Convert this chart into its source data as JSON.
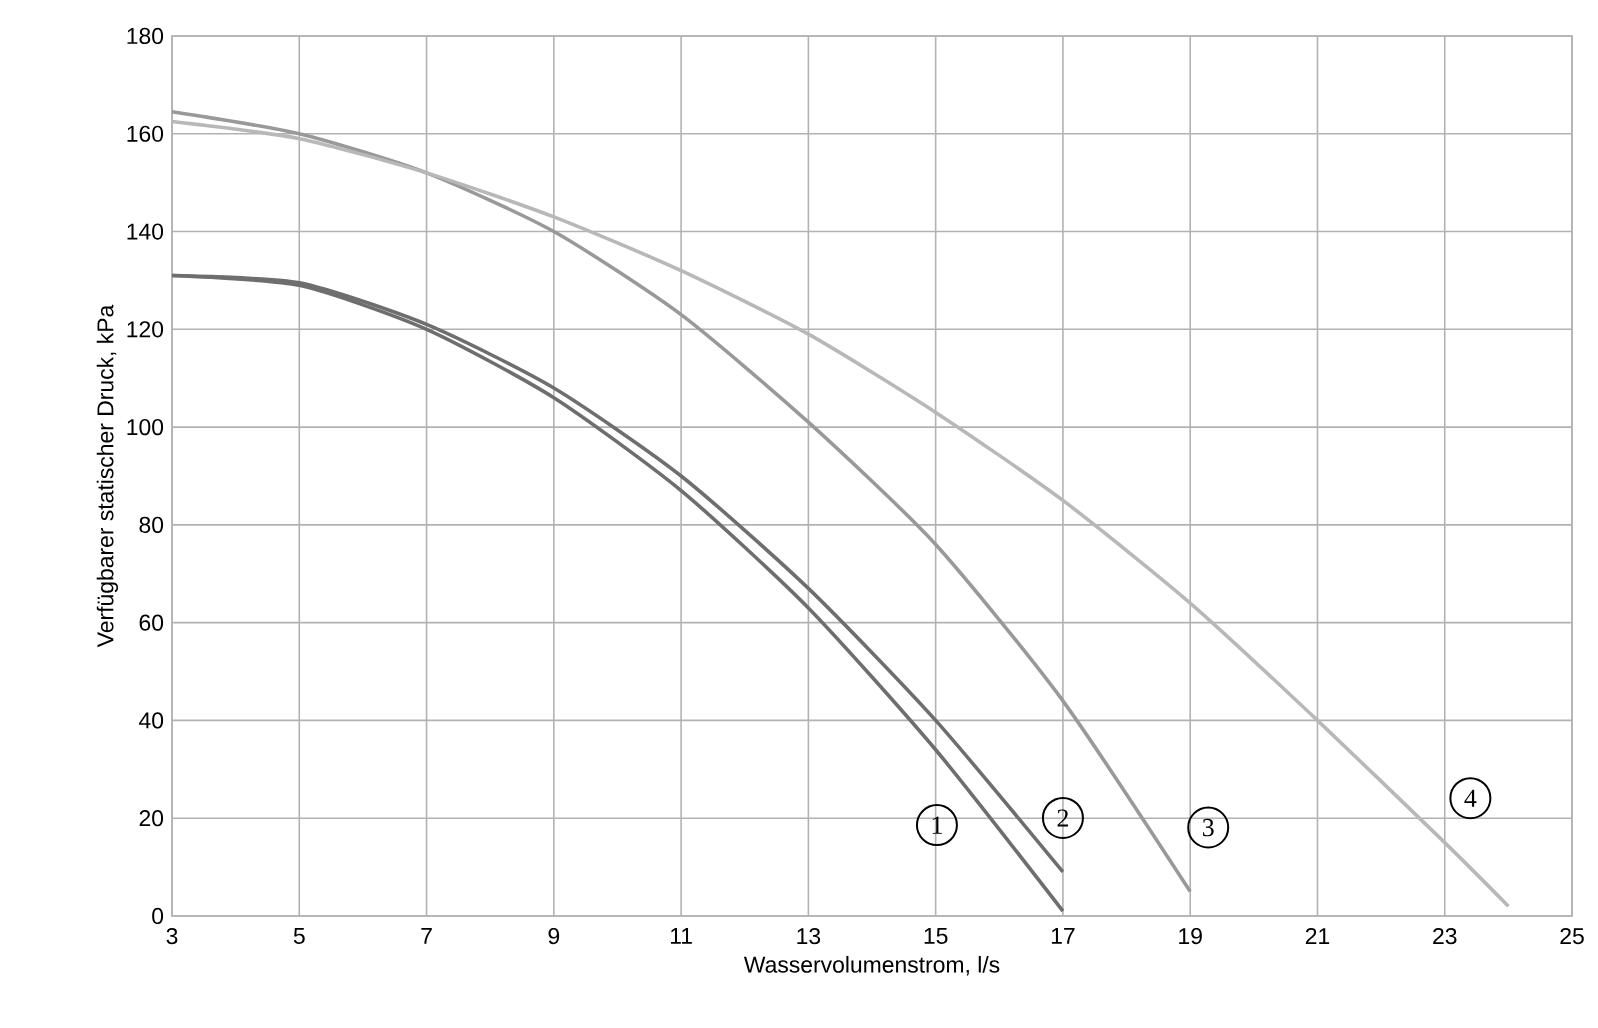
{
  "chart_data": {
    "type": "line",
    "xlabel": "Wasservolumenstrom, l/s",
    "ylabel": "Verfügbarer statischer Druck, kPa",
    "xlim": [
      3,
      25
    ],
    "xticks": [
      3,
      5,
      7,
      9,
      11,
      13,
      15,
      17,
      19,
      21,
      23,
      25
    ],
    "ylim": [
      0,
      180
    ],
    "yticks": [
      0,
      20,
      40,
      60,
      80,
      100,
      120,
      140,
      160,
      180
    ],
    "grid": true,
    "series": [
      {
        "name": "1",
        "color": "#6e6e6e",
        "x": [
          3,
          5,
          7,
          9,
          11,
          13,
          15,
          17
        ],
        "values": [
          131,
          129,
          120,
          106,
          87,
          63,
          34,
          1
        ]
      },
      {
        "name": "2",
        "color": "#6e6e6e",
        "x": [
          3,
          5,
          7,
          9,
          11,
          13,
          15,
          17
        ],
        "values": [
          131,
          129.5,
          121,
          108,
          90,
          67,
          40,
          9
        ]
      },
      {
        "name": "3",
        "color": "#999999",
        "x": [
          3,
          5,
          7,
          9,
          11,
          13,
          15,
          17,
          19
        ],
        "values": [
          164.5,
          160,
          152,
          140,
          123,
          101,
          76,
          44,
          5
        ]
      },
      {
        "name": "4",
        "color": "#b8b8b8",
        "x": [
          3,
          5,
          7,
          9,
          11,
          13,
          15,
          17,
          19,
          21,
          23,
          24
        ],
        "values": [
          162.5,
          159,
          152,
          143,
          132,
          119,
          103,
          85,
          64,
          40,
          15,
          2
        ]
      }
    ]
  }
}
